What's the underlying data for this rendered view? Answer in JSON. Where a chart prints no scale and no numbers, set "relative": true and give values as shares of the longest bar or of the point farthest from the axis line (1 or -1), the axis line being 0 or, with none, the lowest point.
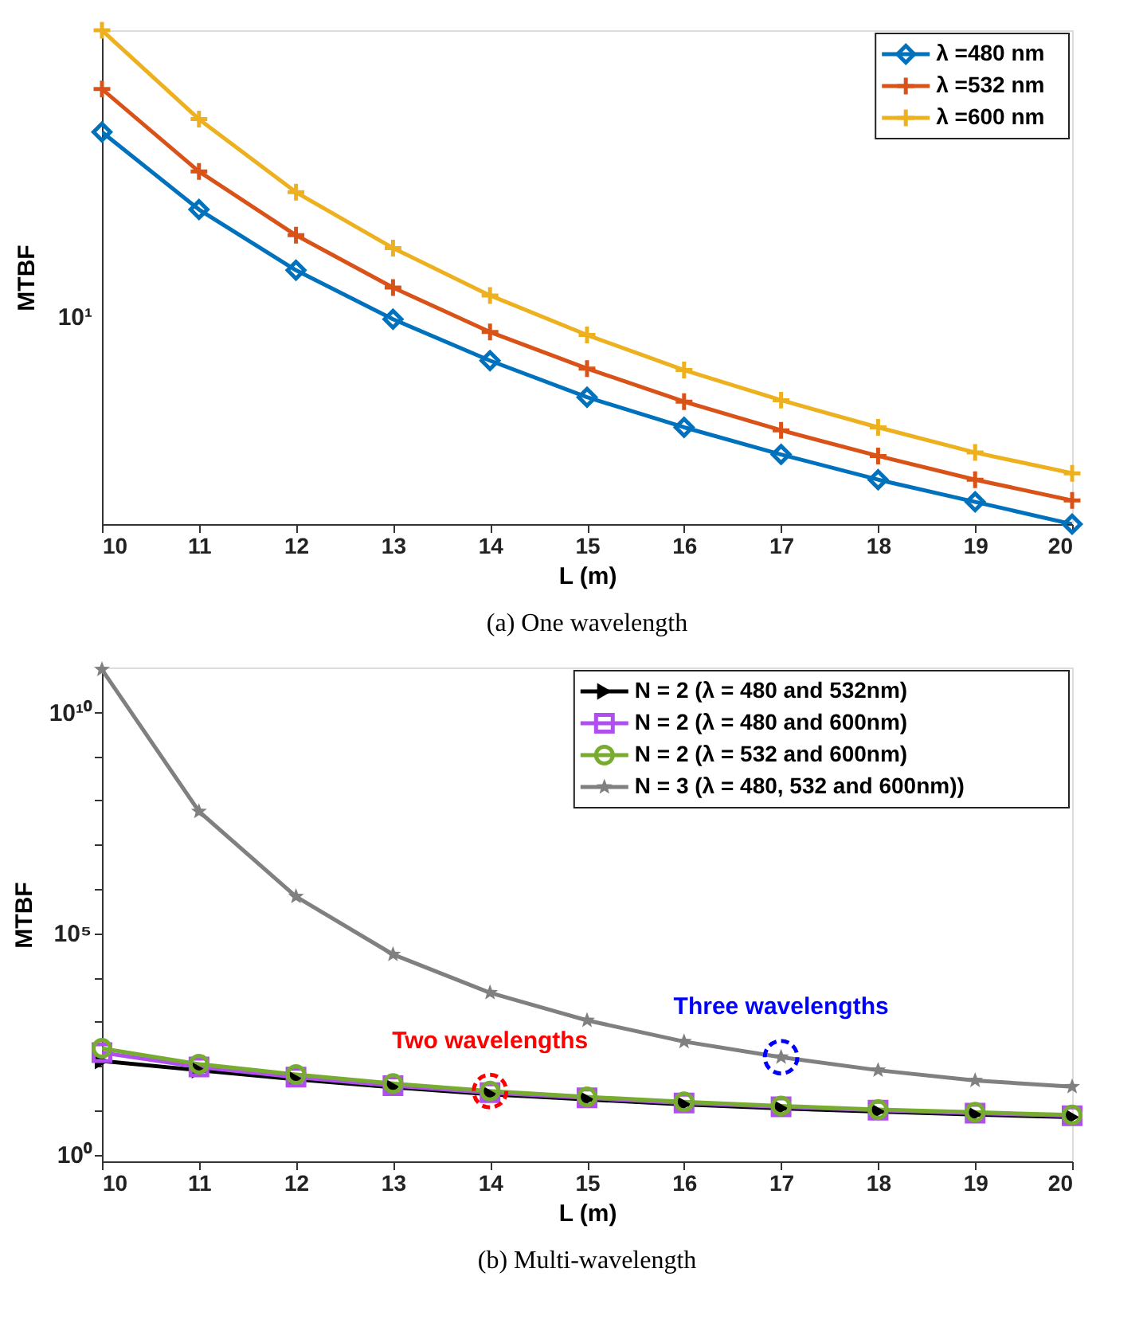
{
  "chart_data": [
    {
      "type": "line",
      "title": "(a) One wavelength",
      "xlabel": "L (m)",
      "ylabel": "MTBF",
      "relative": true,
      "legend": "top right",
      "x": [
        10,
        11,
        12,
        13,
        14,
        15,
        16,
        17,
        18,
        19,
        20
      ],
      "xlim": [
        10,
        20
      ],
      "xticks": [
        10,
        11,
        12,
        13,
        14,
        15,
        16,
        17,
        18,
        19,
        20
      ],
      "series": [
        {
          "name": "λ =480 nm",
          "color": "#0072bd",
          "marker": "diamond",
          "values": [
            0.794,
            0.637,
            0.514,
            0.415,
            0.331,
            0.257,
            0.196,
            0.141,
            0.09,
            0.045,
            0.0
          ]
        },
        {
          "name": "λ =532 nm",
          "color": "#d95319",
          "marker": "cross",
          "values": [
            0.881,
            0.714,
            0.585,
            0.479,
            0.389,
            0.315,
            0.248,
            0.19,
            0.138,
            0.09,
            0.048
          ]
        },
        {
          "name": "λ =600 nm",
          "color": "#edb120",
          "marker": "cross",
          "values": [
            1.0,
            0.82,
            0.672,
            0.559,
            0.463,
            0.383,
            0.312,
            0.251,
            0.196,
            0.145,
            0.103
          ]
        }
      ],
      "annotations": [
        "10¹"
      ]
    },
    {
      "type": "line",
      "title": "(b) Multi-wavelength",
      "xlabel": "L (m)",
      "ylabel": "MTBF",
      "log": "y",
      "legend": "top right",
      "x": [
        10,
        11,
        12,
        13,
        14,
        15,
        16,
        17,
        18,
        19,
        20
      ],
      "xlim": [
        10,
        20
      ],
      "xticks": [
        10,
        11,
        12,
        13,
        14,
        15,
        16,
        17,
        18,
        19,
        20
      ],
      "ylim": [
        0.7,
        100000000000
      ],
      "yticks": [
        {
          "value": 1,
          "label": "10⁰"
        },
        {
          "value": 10,
          "label": null
        },
        {
          "value": 100,
          "label": null
        },
        {
          "value": 1000,
          "label": null
        },
        {
          "value": 10000,
          "label": null
        },
        {
          "value": 100000,
          "label": "10⁵"
        },
        {
          "value": 1000000,
          "label": null
        },
        {
          "value": 10000000,
          "label": null
        },
        {
          "value": 100000000,
          "label": null
        },
        {
          "value": 1000000000,
          "label": null
        },
        {
          "value": 10000000000,
          "label": "10¹⁰"
        }
      ],
      "series": [
        {
          "name": "N = 2 (λ = 480 and 532nm)",
          "color": "#000000",
          "marker": "triangle",
          "values": [
            130,
            80,
            50,
            33,
            23,
            17.5,
            13.5,
            11,
            9.3,
            8,
            7
          ]
        },
        {
          "name": "N = 2 (λ = 480 and 600nm)",
          "color": "#b04ef0",
          "marker": "square",
          "values": [
            200,
            95,
            56,
            36,
            25,
            19,
            14.5,
            12,
            10,
            8.6,
            7.5
          ]
        },
        {
          "name": "N = 2 (λ = 532 and 600nm)",
          "color": "#77ac30",
          "marker": "circle",
          "values": [
            250,
            110,
            64,
            40,
            27,
            20,
            15.5,
            12.5,
            10.3,
            9,
            7.8
          ]
        },
        {
          "name": "N = 3 (λ = 480, 532 and 600nm))",
          "color": "#808080",
          "marker": "star",
          "values": [
            90000000000,
            56000000,
            670000,
            33000,
            4500,
            1070,
            355,
            158,
            80,
            47,
            34
          ]
        }
      ],
      "annotations": [
        {
          "text": "Two wavelengths",
          "x": 14,
          "y": 27
        },
        {
          "text": "Three wavelengths",
          "x": 17,
          "y": 158
        }
      ]
    }
  ]
}
